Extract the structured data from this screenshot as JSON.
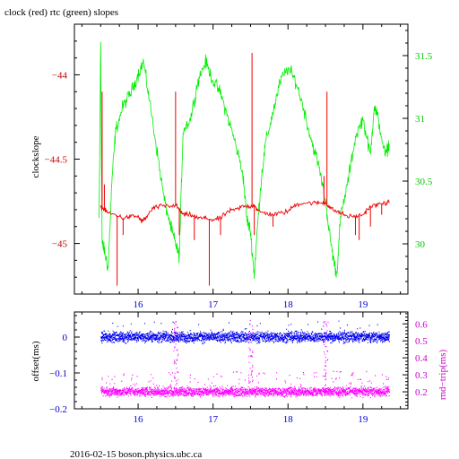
{
  "title": "clock (red) rtc (green) slopes",
  "footer": "2016-02-15  boson.physics.ubc.ca",
  "colors": {
    "clock": "#ee0000",
    "rtc": "#00ee00",
    "offset": "#0000ee",
    "roundtrip": "#ff00ff",
    "axis": "#000000",
    "left_ticks_top": "#cc0000",
    "right_ticks_top": "#00cc00",
    "left_ticks_bottom": "#0000cc",
    "right_ticks_bottom": "#cc00cc",
    "x_ticks": "#0000cc"
  },
  "chart_data": [
    {
      "type": "line",
      "title": "clock (red) rtc (green) slopes",
      "xlabel": "",
      "ylabel": "clockslope",
      "y2label": "",
      "xlim": [
        15.15,
        19.6
      ],
      "ylim": [
        -45.3,
        -43.7
      ],
      "y2lim": [
        29.6,
        31.75
      ],
      "x_ticks": [
        16,
        17,
        18,
        19
      ],
      "y_ticks": [
        -44,
        -44.5,
        -45
      ],
      "y_tick_labels": [
        "−44",
        "−44.5",
        "−45"
      ],
      "y2_ticks": [
        31.5,
        31,
        30.5,
        30
      ],
      "y2_tick_labels": [
        "31.5",
        "31",
        "30.5",
        "30"
      ],
      "x_tick_labels": [
        "16",
        "17",
        "18",
        "19"
      ],
      "series": [
        {
          "axis": "left",
          "color": "#ee0000",
          "x": [
            15.5,
            15.55,
            15.6,
            15.7,
            15.8,
            15.9,
            16.0,
            16.05,
            16.1,
            16.2,
            16.3,
            16.45,
            16.5,
            16.55,
            16.6,
            16.7,
            16.8,
            16.9,
            17.0,
            17.1,
            17.2,
            17.3,
            17.4,
            17.5,
            17.55,
            17.6,
            17.7,
            17.8,
            17.9,
            18.0,
            18.1,
            18.2,
            18.3,
            18.4,
            18.5,
            18.55,
            18.6,
            18.7,
            18.8,
            18.9,
            19.0,
            19.1,
            19.2,
            19.3,
            19.35
          ],
          "y": [
            -44.78,
            -44.8,
            -44.82,
            -44.83,
            -44.85,
            -44.84,
            -44.84,
            -44.87,
            -44.85,
            -44.79,
            -44.78,
            -44.78,
            -44.77,
            -44.8,
            -44.83,
            -44.83,
            -44.85,
            -44.85,
            -44.86,
            -44.85,
            -44.81,
            -44.8,
            -44.78,
            -44.78,
            -44.77,
            -44.81,
            -44.82,
            -44.83,
            -44.82,
            -44.81,
            -44.77,
            -44.76,
            -44.76,
            -44.76,
            -44.76,
            -44.78,
            -44.8,
            -44.82,
            -44.84,
            -44.84,
            -44.83,
            -44.78,
            -44.77,
            -44.76,
            -44.76
          ],
          "spikes": [
            {
              "x": 15.52,
              "y": -44.1
            },
            {
              "x": 15.55,
              "y": -44.65
            },
            {
              "x": 15.72,
              "y": -45.25
            },
            {
              "x": 15.8,
              "y": -44.95
            },
            {
              "x": 16.5,
              "y": -44.1
            },
            {
              "x": 16.55,
              "y": -44.95
            },
            {
              "x": 16.75,
              "y": -44.98
            },
            {
              "x": 16.95,
              "y": -45.25
            },
            {
              "x": 17.1,
              "y": -44.95
            },
            {
              "x": 17.52,
              "y": -43.87
            },
            {
              "x": 17.55,
              "y": -44.95
            },
            {
              "x": 17.8,
              "y": -44.9
            },
            {
              "x": 18.48,
              "y": -44.6
            },
            {
              "x": 18.52,
              "y": -44.1
            },
            {
              "x": 18.9,
              "y": -44.95
            },
            {
              "x": 18.95,
              "y": -44.98
            },
            {
              "x": 19.1,
              "y": -44.9
            },
            {
              "x": 19.25,
              "y": -44.83
            }
          ]
        },
        {
          "axis": "right",
          "color": "#00ee00",
          "x": [
            15.48,
            15.5,
            15.52,
            15.55,
            15.6,
            15.65,
            15.7,
            15.8,
            15.9,
            16.0,
            16.07,
            16.15,
            16.25,
            16.35,
            16.45,
            16.5,
            16.55,
            16.6,
            16.7,
            16.8,
            16.9,
            17.0,
            17.1,
            17.2,
            17.3,
            17.4,
            17.45,
            17.5,
            17.55,
            17.6,
            17.65,
            17.7,
            17.8,
            17.9,
            18.0,
            18.1,
            18.2,
            18.3,
            18.4,
            18.5,
            18.55,
            18.6,
            18.65,
            18.7,
            18.8,
            18.9,
            19.0,
            19.1,
            19.15,
            19.2,
            19.3,
            19.35
          ],
          "y": [
            30.2,
            31.6,
            30.0,
            29.95,
            29.8,
            30.5,
            30.9,
            31.1,
            31.2,
            31.35,
            31.45,
            31.15,
            30.75,
            30.35,
            30.1,
            30.0,
            29.9,
            30.9,
            31.0,
            31.3,
            31.45,
            31.3,
            31.2,
            31.0,
            30.8,
            30.55,
            30.2,
            30.1,
            29.75,
            30.2,
            30.55,
            30.8,
            31.05,
            31.3,
            31.4,
            31.3,
            31.1,
            30.85,
            30.65,
            30.35,
            30.1,
            29.9,
            29.75,
            30.2,
            30.5,
            30.85,
            31.0,
            30.7,
            31.1,
            31.0,
            30.7,
            30.8
          ]
        }
      ]
    },
    {
      "type": "scatter",
      "xlabel": "",
      "ylabel": "offset(ms)",
      "y2label": "rnd−trip(ms)",
      "xlim": [
        15.15,
        19.6
      ],
      "ylim": [
        -0.2,
        0.07
      ],
      "y2lim": [
        0.1,
        0.67
      ],
      "x_ticks": [
        16,
        17,
        18,
        19
      ],
      "x_tick_labels": [
        "16",
        "17",
        "18",
        "19"
      ],
      "y_ticks": [
        0,
        -0.1,
        -0.2
      ],
      "y_tick_labels": [
        "0",
        "−0.1",
        "−0.2"
      ],
      "y2_ticks": [
        0.6,
        0.5,
        0.4,
        0.3,
        0.2
      ],
      "y2_tick_labels": [
        "0.6",
        "0.5",
        "0.4",
        "0.3",
        "0.2"
      ],
      "series": [
        {
          "name": "offset",
          "axis": "left",
          "color": "#0000ee",
          "x_range": [
            15.5,
            19.35
          ],
          "center": 0.0,
          "spread": 0.012
        },
        {
          "name": "round-trip",
          "axis": "right",
          "color": "#ff00ff",
          "x_range": [
            15.5,
            19.35
          ],
          "center": 0.2,
          "spread": 0.022,
          "spike_x": [
            16.5,
            17.5,
            18.5
          ]
        }
      ]
    }
  ]
}
